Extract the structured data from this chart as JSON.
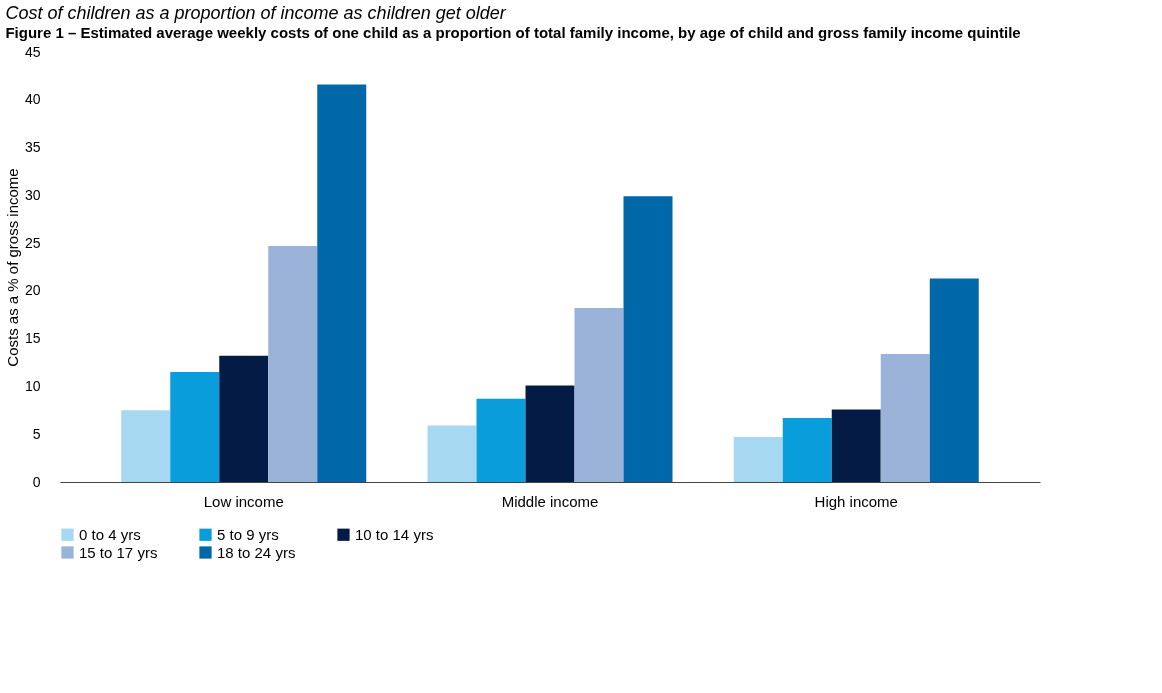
{
  "chart_data": {
    "type": "bar",
    "title": "Cost of children as a proportion of income as children get older",
    "subtitle": "Figure 1 – Estimated average weekly costs of one child as a proportion of total family income, by age of child and gross family income quintile",
    "ylabel": "Costs as a % of gross income",
    "categories": [
      "Low income",
      "Middle income",
      "High income"
    ],
    "series": [
      {
        "name": "0 to 4 yrs",
        "color": "#a6d8f2",
        "values": [
          7.5,
          5.9,
          4.7
        ]
      },
      {
        "name": "5 to 9 yrs",
        "color": "#0a9ddb",
        "values": [
          11.5,
          8.7,
          6.7
        ]
      },
      {
        "name": "10 to 14 yrs",
        "color": "#041c45",
        "values": [
          13.2,
          10.1,
          7.6
        ]
      },
      {
        "name": "15 to 17 yrs",
        "color": "#9bb3d9",
        "values": [
          24.7,
          18.2,
          13.4
        ]
      },
      {
        "name": "18 to 24 yrs",
        "color": "#0068a9",
        "values": [
          41.6,
          29.9,
          21.3
        ]
      }
    ],
    "ylim": [
      0,
      45
    ],
    "yticks": [
      0,
      5,
      10,
      15,
      20,
      25,
      30,
      35,
      40,
      45
    ],
    "grid": false,
    "legend": "bottom"
  }
}
